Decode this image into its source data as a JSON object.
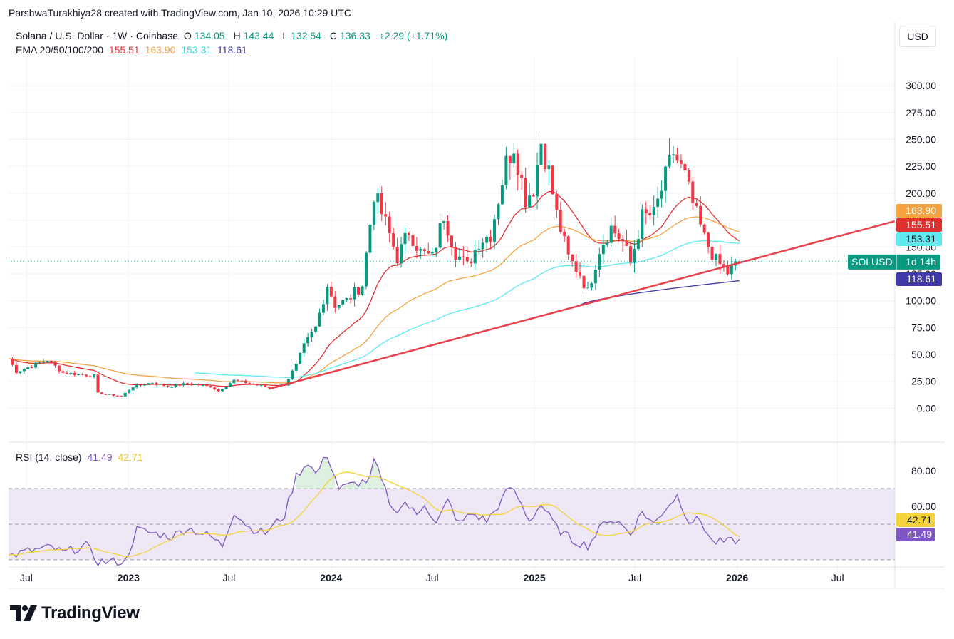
{
  "header": {
    "credit": "ParshwaTurakhiya28 created with TradingView.com, Jan 10, 2026 10:29 UTC"
  },
  "legend": {
    "symbol": "Solana / U.S. Dollar · 1W · Coinbase",
    "open_label": "O",
    "open": "134.05",
    "high_label": "H",
    "high": "143.44",
    "low_label": "L",
    "low": "132.54",
    "close_label": "C",
    "close": "136.33",
    "change": "+2.29 (+1.71%)",
    "ema_label": "EMA 20/50/100/200",
    "ema20": "155.51",
    "ema50": "163.90",
    "ema100": "153.31",
    "ema200": "118.61"
  },
  "rsi_legend": {
    "label": "RSI (14, close)",
    "rsi": "41.49",
    "ma": "42.71"
  },
  "currency_button": "USD",
  "branding": {
    "name": "TradingView"
  },
  "colors": {
    "up": "#089981",
    "down": "#f23645",
    "trendline": "#e8424d",
    "ema20": "#e03131",
    "ema50": "#f4a340",
    "ema100": "#5ee9ef",
    "ema200": "#3f3aa8",
    "rsi": "#7e57c2",
    "rsi_ma": "#f5d33a",
    "rsi_band": "#ede7f6"
  },
  "chart_data": {
    "type": "candlestick",
    "symbol": "SOLUSD",
    "interval": "1W",
    "price_axis": {
      "ticks": [
        "300.00",
        "275.00",
        "250.00",
        "225.00",
        "200.00",
        "175.00",
        "150.00",
        "125.00",
        "100.00",
        "75.00",
        "50.00",
        "25.00",
        "0.00"
      ],
      "range": [
        -15,
        320
      ]
    },
    "time_axis": {
      "ticks": [
        {
          "label": "Jul",
          "date": "2022-07-01",
          "bold": false
        },
        {
          "label": "2023",
          "date": "2023-01-01",
          "bold": true
        },
        {
          "label": "Jul",
          "date": "2023-07-01",
          "bold": false
        },
        {
          "label": "2024",
          "date": "2024-01-01",
          "bold": true
        },
        {
          "label": "Jul",
          "date": "2024-07-01",
          "bold": false
        },
        {
          "label": "2025",
          "date": "2025-01-01",
          "bold": true
        },
        {
          "label": "Jul",
          "date": "2025-07-01",
          "bold": false
        },
        {
          "label": "2026",
          "date": "2026-01-01",
          "bold": true
        },
        {
          "label": "Jul",
          "date": "2026-07-01",
          "bold": false
        }
      ],
      "range": [
        "2022-05-30",
        "2026-10-12"
      ]
    },
    "current_price": 136.33,
    "price_tag": {
      "symbol": "SOLUSD",
      "countdown": "1d 14h"
    },
    "axis_labels": [
      {
        "value": 163.9,
        "text": "163.90",
        "key": "ema50"
      },
      {
        "value": 155.51,
        "text": "155.51",
        "key": "ema20"
      },
      {
        "value": 153.31,
        "text": "153.31",
        "key": "ema100"
      },
      {
        "value": 118.61,
        "text": "118.61",
        "key": "ema200"
      }
    ],
    "trendline": [
      {
        "date": "2023-09-11",
        "price": 18
      },
      {
        "date": "2026-10-12",
        "price": 174
      }
    ],
    "close_keypoints": [
      [
        "2022-05-30",
        46
      ],
      [
        "2022-06-13",
        34
      ],
      [
        "2022-07-04",
        38
      ],
      [
        "2022-08-08",
        45
      ],
      [
        "2022-09-05",
        33
      ],
      [
        "2022-10-31",
        30
      ],
      [
        "2022-11-07",
        14
      ],
      [
        "2022-12-19",
        11
      ],
      [
        "2023-01-09",
        20
      ],
      [
        "2023-02-13",
        24
      ],
      [
        "2023-03-13",
        20
      ],
      [
        "2023-04-17",
        23
      ],
      [
        "2023-05-29",
        20
      ],
      [
        "2023-06-12",
        16
      ],
      [
        "2023-07-10",
        26
      ],
      [
        "2023-08-07",
        23
      ],
      [
        "2023-09-11",
        19
      ],
      [
        "2023-10-09",
        22
      ],
      [
        "2023-10-30",
        40
      ],
      [
        "2023-11-13",
        58
      ],
      [
        "2023-12-04",
        75
      ],
      [
        "2023-12-25",
        115
      ],
      [
        "2024-01-08",
        96
      ],
      [
        "2024-01-29",
        100
      ],
      [
        "2024-02-26",
        115
      ],
      [
        "2024-03-18",
        200
      ],
      [
        "2024-04-08",
        172
      ],
      [
        "2024-04-29",
        140
      ],
      [
        "2024-05-20",
        165
      ],
      [
        "2024-06-10",
        145
      ],
      [
        "2024-07-01",
        140
      ],
      [
        "2024-07-22",
        180
      ],
      [
        "2024-08-12",
        145
      ],
      [
        "2024-09-02",
        132
      ],
      [
        "2024-09-23",
        155
      ],
      [
        "2024-10-14",
        162
      ],
      [
        "2024-11-11",
        228
      ],
      [
        "2024-11-25",
        245
      ],
      [
        "2024-12-16",
        195
      ],
      [
        "2024-12-30",
        205
      ],
      [
        "2025-01-13",
        248
      ],
      [
        "2025-01-27",
        220
      ],
      [
        "2025-02-10",
        180
      ],
      [
        "2025-03-03",
        140
      ],
      [
        "2025-03-24",
        125
      ],
      [
        "2025-04-07",
        108
      ],
      [
        "2025-04-28",
        148
      ],
      [
        "2025-05-19",
        168
      ],
      [
        "2025-06-09",
        155
      ],
      [
        "2025-06-23",
        135
      ],
      [
        "2025-07-14",
        178
      ],
      [
        "2025-08-04",
        180
      ],
      [
        "2025-08-18",
        203
      ],
      [
        "2025-09-08",
        238
      ],
      [
        "2025-09-29",
        215
      ],
      [
        "2025-10-13",
        190
      ],
      [
        "2025-11-03",
        158
      ],
      [
        "2025-11-24",
        137
      ],
      [
        "2025-12-15",
        126
      ],
      [
        "2026-01-05",
        136.33
      ]
    ],
    "ema_endpoints": {
      "ema20": 155.51,
      "ema50": 163.9,
      "ema100": 153.31,
      "ema200": 118.61
    },
    "rsi": {
      "axis_ticks": [
        "80.00",
        "60.00"
      ],
      "range": [
        28,
        94
      ],
      "bands": [
        70,
        50,
        30
      ],
      "last_rsi": 41.49,
      "last_ma": 42.71,
      "keypoints": [
        [
          "2022-05-30",
          32
        ],
        [
          "2022-07-04",
          35
        ],
        [
          "2022-08-15",
          37
        ],
        [
          "2022-09-05",
          34
        ],
        [
          "2022-10-17",
          38
        ],
        [
          "2022-11-07",
          29
        ],
        [
          "2022-12-26",
          29
        ],
        [
          "2023-01-16",
          47
        ],
        [
          "2023-02-13",
          45
        ],
        [
          "2023-03-20",
          43
        ],
        [
          "2023-04-17",
          48
        ],
        [
          "2023-05-29",
          43
        ],
        [
          "2023-06-19",
          38
        ],
        [
          "2023-07-10",
          57
        ],
        [
          "2023-08-07",
          48
        ],
        [
          "2023-09-04",
          45
        ],
        [
          "2023-10-09",
          55
        ],
        [
          "2023-10-30",
          77
        ],
        [
          "2023-11-20",
          85
        ],
        [
          "2023-12-04",
          78
        ],
        [
          "2023-12-25",
          89
        ],
        [
          "2024-01-15",
          70
        ],
        [
          "2024-02-05",
          72
        ],
        [
          "2024-03-11",
          75
        ],
        [
          "2024-03-18",
          86
        ],
        [
          "2024-04-01",
          74
        ],
        [
          "2024-04-22",
          57
        ],
        [
          "2024-05-13",
          62
        ],
        [
          "2024-06-03",
          55
        ],
        [
          "2024-06-17",
          62
        ],
        [
          "2024-07-08",
          50
        ],
        [
          "2024-07-29",
          63
        ],
        [
          "2024-08-19",
          50
        ],
        [
          "2024-09-09",
          56
        ],
        [
          "2024-10-07",
          52
        ],
        [
          "2024-10-21",
          57
        ],
        [
          "2024-11-18",
          71
        ],
        [
          "2024-12-02",
          65
        ],
        [
          "2024-12-23",
          52
        ],
        [
          "2025-01-13",
          61
        ],
        [
          "2025-02-10",
          48
        ],
        [
          "2025-03-10",
          41
        ],
        [
          "2025-04-07",
          38
        ],
        [
          "2025-05-12",
          53
        ],
        [
          "2025-06-02",
          51
        ],
        [
          "2025-06-23",
          45
        ],
        [
          "2025-07-14",
          57
        ],
        [
          "2025-08-04",
          50
        ],
        [
          "2025-08-25",
          59
        ],
        [
          "2025-09-15",
          66
        ],
        [
          "2025-10-06",
          52
        ],
        [
          "2025-10-27",
          52
        ],
        [
          "2025-11-17",
          40
        ],
        [
          "2025-12-15",
          40
        ],
        [
          "2026-01-05",
          41.49
        ]
      ]
    }
  }
}
